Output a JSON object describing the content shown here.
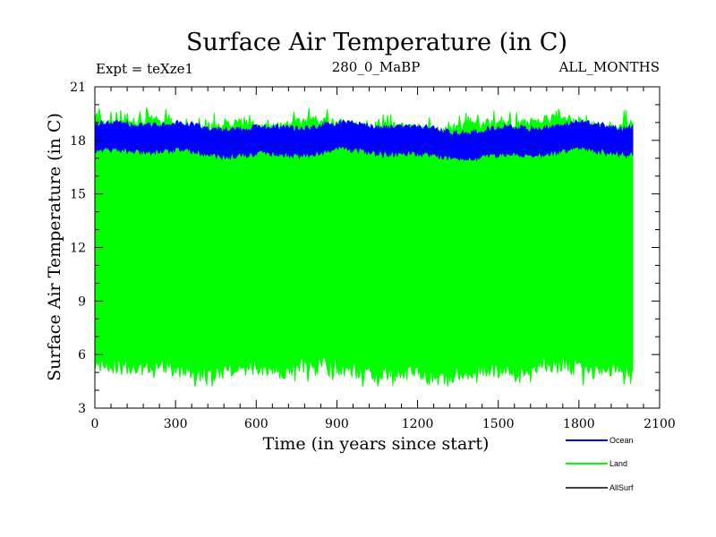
{
  "chart_data": {
    "type": "line",
    "title": "Surface Air Temperature (in C)",
    "subtitle_left": "Expt = teXze1",
    "subtitle_center": "280_0_MaBP",
    "subtitle_right": "ALL_MONTHS",
    "xlabel": "Time (in years since start)",
    "ylabel": "Surface Air Temperature (in C)",
    "xlim": [
      0,
      2100
    ],
    "ylim": [
      3,
      21
    ],
    "x_ticks": [
      "0",
      "300",
      "600",
      "900",
      "1200",
      "1500",
      "1800",
      "2100"
    ],
    "y_ticks": [
      "3",
      "6",
      "9",
      "12",
      "15",
      "18",
      "21"
    ],
    "grid": false,
    "legend_position": "bottom-right",
    "series": [
      {
        "name": "Ocean",
        "color": "#0000ff",
        "x_range": [
          0,
          2000
        ],
        "mean": 18.0,
        "min": 16.9,
        "max": 19.6
      },
      {
        "name": "Land",
        "color": "#00ff00",
        "x_range": [
          0,
          2000
        ],
        "mean": 12.0,
        "min": 4.2,
        "max": 19.8
      },
      {
        "name": "AllSurf",
        "color": "#000000",
        "x_range": [
          0,
          2000
        ],
        "mean": null,
        "min": null,
        "max": null
      }
    ]
  }
}
